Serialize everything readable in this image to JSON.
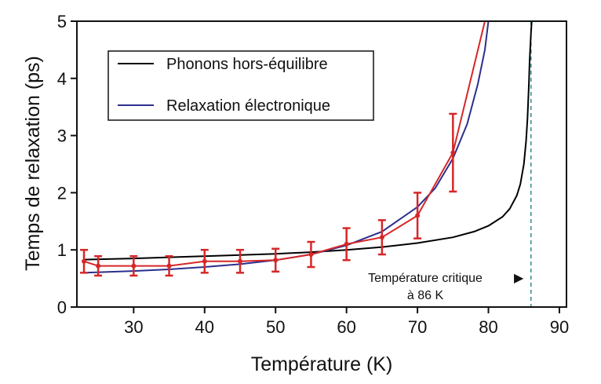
{
  "chart_data": {
    "type": "line",
    "title": "",
    "xlabel": "Température (K)",
    "ylabel": "Temps de relaxation (ps)",
    "xlim": [
      22,
      91
    ],
    "ylim": [
      0,
      5
    ],
    "x_ticks": [
      30,
      40,
      50,
      60,
      70,
      80,
      90
    ],
    "y_ticks": [
      0,
      1,
      2,
      3,
      4,
      5
    ],
    "grid": false,
    "legend_position": "top-left",
    "series": [
      {
        "name": "Phonons hors-équilibre",
        "color": "#000000",
        "x": [
          23,
          30,
          40,
          50,
          55,
          60,
          65,
          70,
          75,
          78,
          80,
          82,
          83,
          84,
          84.5,
          85,
          85.3,
          85.5,
          85.7,
          85.8,
          86,
          86.1
        ],
        "y": [
          0.83,
          0.85,
          0.89,
          0.93,
          0.96,
          1.0,
          1.05,
          1.12,
          1.22,
          1.32,
          1.42,
          1.58,
          1.72,
          1.95,
          2.15,
          2.5,
          2.9,
          3.3,
          3.9,
          4.3,
          4.8,
          5.0
        ]
      },
      {
        "name": "Relaxation électronique",
        "color": "#2b2f8c",
        "x": [
          23,
          30,
          35,
          40,
          45,
          50,
          55,
          60,
          65,
          70,
          72.5,
          75,
          77,
          78.5,
          79.5,
          80
        ],
        "y": [
          0.6,
          0.63,
          0.66,
          0.7,
          0.75,
          0.82,
          0.92,
          1.08,
          1.32,
          1.75,
          2.08,
          2.6,
          3.2,
          3.9,
          4.5,
          5.0
        ]
      },
      {
        "name": "",
        "color": "#d62728",
        "x": [
          23,
          25,
          30,
          35,
          40,
          45,
          50,
          55,
          60,
          65,
          70,
          75,
          79.5
        ],
        "y": [
          0.8,
          0.72,
          0.72,
          0.72,
          0.8,
          0.8,
          0.82,
          0.92,
          1.1,
          1.22,
          1.6,
          2.7,
          5.0
        ],
        "error": [
          0.2,
          0.17,
          0.17,
          0.17,
          0.2,
          0.2,
          0.2,
          0.22,
          0.28,
          0.3,
          0.4,
          0.68,
          0
        ],
        "markers_count": 12
      }
    ],
    "critical_line": {
      "x": 86,
      "color": "#2a8f8f",
      "style": "dashed"
    },
    "annotation": {
      "line1": "Température critique",
      "line2": "à 86 K",
      "arrow": "▶"
    }
  }
}
